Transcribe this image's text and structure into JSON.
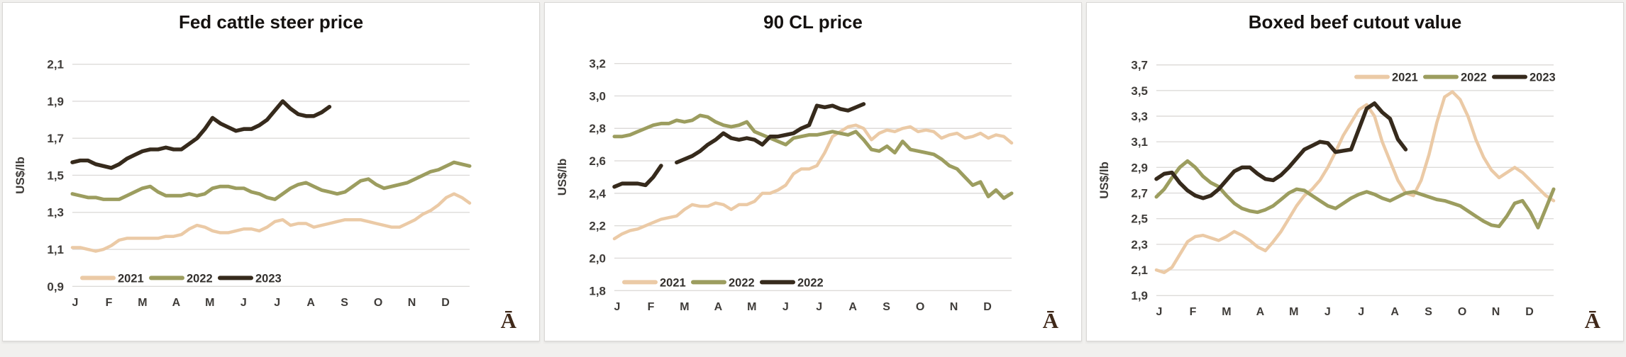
{
  "page": {
    "background": "#f1f0ee"
  },
  "chart_data": [
    {
      "type": "line",
      "title": "Fed cattle steer price",
      "ylabel": "US$/lb",
      "corner_label": "Ā",
      "ylim": [
        0.9,
        2.1
      ],
      "y_ticks": [
        "2,1",
        "1,9",
        "1,7",
        "1,5",
        "1,3",
        "1,1",
        "0,9"
      ],
      "months": [
        "J",
        "F",
        "M",
        "A",
        "M",
        "J",
        "J",
        "A",
        "S",
        "O",
        "N",
        "D"
      ],
      "grid": true,
      "legend_position": "bottom",
      "gridline_color": "#dddbd9",
      "tick_color": "#3f3c39",
      "series": [
        {
          "name": "2021",
          "color": "#ebcaa6",
          "stroke_width": 4.5,
          "values": [
            1.11,
            1.11,
            1.1,
            1.09,
            1.1,
            1.12,
            1.15,
            1.16,
            1.16,
            1.16,
            1.16,
            1.16,
            1.17,
            1.17,
            1.18,
            1.21,
            1.23,
            1.22,
            1.2,
            1.19,
            1.19,
            1.2,
            1.21,
            1.21,
            1.2,
            1.22,
            1.25,
            1.26,
            1.23,
            1.24,
            1.24,
            1.22,
            1.23,
            1.24,
            1.25,
            1.26,
            1.26,
            1.26,
            1.25,
            1.24,
            1.23,
            1.22,
            1.22,
            1.24,
            1.26,
            1.29,
            1.31,
            1.34,
            1.38,
            1.4,
            1.38,
            1.35
          ]
        },
        {
          "name": "2022",
          "color": "#9c9d5f",
          "stroke_width": 5,
          "values": [
            1.4,
            1.39,
            1.38,
            1.38,
            1.37,
            1.37,
            1.37,
            1.39,
            1.41,
            1.43,
            1.44,
            1.41,
            1.39,
            1.39,
            1.39,
            1.4,
            1.39,
            1.4,
            1.43,
            1.44,
            1.44,
            1.43,
            1.43,
            1.41,
            1.4,
            1.38,
            1.37,
            1.4,
            1.43,
            1.45,
            1.46,
            1.44,
            1.42,
            1.41,
            1.4,
            1.41,
            1.44,
            1.47,
            1.48,
            1.45,
            1.43,
            1.44,
            1.45,
            1.46,
            1.48,
            1.5,
            1.52,
            1.53,
            1.55,
            1.57,
            1.56,
            1.55
          ]
        },
        {
          "name": "2023",
          "color": "#362a1c",
          "stroke_width": 5.5,
          "values": [
            1.57,
            1.58,
            1.58,
            1.56,
            1.55,
            1.54,
            1.56,
            1.59,
            1.61,
            1.63,
            1.64,
            1.64,
            1.65,
            1.64,
            1.64,
            1.67,
            1.7,
            1.75,
            1.81,
            1.78,
            1.76,
            1.74,
            1.75,
            1.75,
            1.77,
            1.8,
            1.85,
            1.9,
            1.86,
            1.83,
            1.82,
            1.82,
            1.84,
            1.87
          ]
        }
      ]
    },
    {
      "type": "line",
      "title": "90 CL price",
      "ylabel": "US$/lb",
      "corner_label": "Ā",
      "ylim": [
        1.8,
        3.2
      ],
      "y_ticks": [
        "3,2",
        "3,0",
        "2,8",
        "2,6",
        "2,4",
        "2,2",
        "2,0",
        "1,8"
      ],
      "months": [
        "J",
        "F",
        "M",
        "A",
        "M",
        "J",
        "J",
        "A",
        "S",
        "O",
        "N",
        "D"
      ],
      "grid": true,
      "legend_position": "bottom",
      "gridline_color": "#dddbd9",
      "tick_color": "#3f3c39",
      "series": [
        {
          "name": "2021",
          "color": "#ebcaa6",
          "stroke_width": 4.5,
          "values": [
            2.12,
            2.15,
            2.17,
            2.18,
            2.2,
            2.22,
            2.24,
            2.25,
            2.26,
            2.3,
            2.33,
            2.32,
            2.32,
            2.34,
            2.33,
            2.3,
            2.33,
            2.33,
            2.35,
            2.4,
            2.4,
            2.42,
            2.45,
            2.52,
            2.55,
            2.55,
            2.57,
            2.65,
            2.75,
            2.78,
            2.81,
            2.82,
            2.8,
            2.73,
            2.77,
            2.79,
            2.78,
            2.8,
            2.81,
            2.78,
            2.79,
            2.78,
            2.74,
            2.76,
            2.77,
            2.74,
            2.75,
            2.77,
            2.74,
            2.76,
            2.75,
            2.71
          ]
        },
        {
          "name": "2022",
          "color": "#9c9d5f",
          "stroke_width": 5,
          "values": [
            2.75,
            2.75,
            2.76,
            2.78,
            2.8,
            2.82,
            2.83,
            2.83,
            2.85,
            2.84,
            2.85,
            2.88,
            2.87,
            2.84,
            2.82,
            2.81,
            2.82,
            2.84,
            2.78,
            2.76,
            2.74,
            2.72,
            2.7,
            2.74,
            2.75,
            2.76,
            2.76,
            2.77,
            2.78,
            2.77,
            2.76,
            2.78,
            2.73,
            2.67,
            2.66,
            2.69,
            2.65,
            2.72,
            2.67,
            2.66,
            2.65,
            2.64,
            2.61,
            2.57,
            2.55,
            2.5,
            2.45,
            2.47,
            2.38,
            2.42,
            2.37,
            2.4
          ]
        },
        {
          "name": "2022",
          "color": "#362a1c",
          "stroke_width": 5.5,
          "values": [
            2.44,
            2.46,
            2.46,
            2.46,
            2.45,
            2.5,
            2.57,
            null,
            2.59,
            2.61,
            2.63,
            2.66,
            2.7,
            2.73,
            2.77,
            2.74,
            2.73,
            2.74,
            2.73,
            2.7,
            2.75,
            2.75,
            2.76,
            2.77,
            2.8,
            2.82,
            2.94,
            2.93,
            2.94,
            2.92,
            2.91,
            2.93,
            2.95
          ]
        }
      ]
    },
    {
      "type": "line",
      "title": "Boxed beef cutout value",
      "ylabel": "US$/lb",
      "corner_label": "Ā",
      "ylim": [
        1.9,
        3.7
      ],
      "y_ticks": [
        "3,7",
        "3,5",
        "3,3",
        "3,1",
        "2,9",
        "2,7",
        "2,5",
        "2,3",
        "2,1",
        "1,9"
      ],
      "months": [
        "J",
        "F",
        "M",
        "A",
        "M",
        "J",
        "J",
        "A",
        "S",
        "O",
        "N",
        "D"
      ],
      "grid": true,
      "legend_position": "top-right",
      "gridline_color": "#dddbd9",
      "tick_color": "#3f3c39",
      "series": [
        {
          "name": "2021",
          "color": "#ebcaa6",
          "stroke_width": 4.5,
          "values": [
            2.1,
            2.08,
            2.12,
            2.22,
            2.32,
            2.36,
            2.37,
            2.35,
            2.33,
            2.36,
            2.4,
            2.37,
            2.33,
            2.28,
            2.25,
            2.32,
            2.4,
            2.5,
            2.6,
            2.68,
            2.73,
            2.8,
            2.9,
            3.02,
            3.15,
            3.25,
            3.35,
            3.39,
            3.3,
            3.1,
            2.95,
            2.8,
            2.7,
            2.68,
            2.8,
            3.0,
            3.25,
            3.45,
            3.49,
            3.43,
            3.3,
            3.12,
            2.98,
            2.88,
            2.82,
            2.86,
            2.9,
            2.86,
            2.8,
            2.74,
            2.68,
            2.64
          ]
        },
        {
          "name": "2022",
          "color": "#9c9d5f",
          "stroke_width": 5,
          "values": [
            2.67,
            2.73,
            2.82,
            2.9,
            2.95,
            2.9,
            2.83,
            2.78,
            2.75,
            2.68,
            2.62,
            2.58,
            2.56,
            2.55,
            2.57,
            2.6,
            2.65,
            2.7,
            2.73,
            2.72,
            2.68,
            2.64,
            2.6,
            2.58,
            2.62,
            2.66,
            2.69,
            2.71,
            2.69,
            2.66,
            2.64,
            2.67,
            2.7,
            2.71,
            2.69,
            2.67,
            2.65,
            2.64,
            2.62,
            2.6,
            2.56,
            2.52,
            2.48,
            2.45,
            2.44,
            2.52,
            2.62,
            2.64,
            2.55,
            2.43,
            2.58,
            2.73
          ]
        },
        {
          "name": "2023",
          "color": "#362a1c",
          "stroke_width": 5.5,
          "values": [
            2.81,
            2.85,
            2.86,
            2.78,
            2.72,
            2.68,
            2.66,
            2.68,
            2.73,
            2.8,
            2.87,
            2.9,
            2.9,
            2.85,
            2.81,
            2.8,
            2.84,
            2.9,
            2.97,
            3.04,
            3.07,
            3.1,
            3.09,
            3.02,
            3.03,
            3.04,
            3.2,
            3.36,
            3.4,
            3.33,
            3.28,
            3.12,
            3.04
          ]
        }
      ]
    }
  ]
}
